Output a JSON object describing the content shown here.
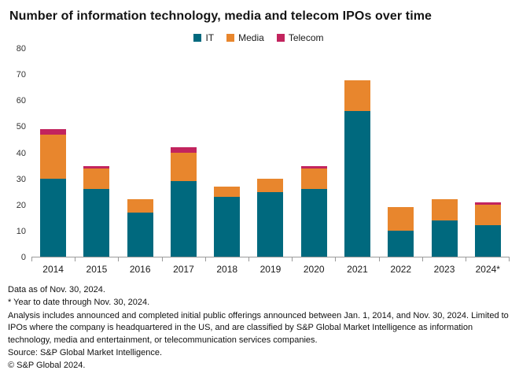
{
  "title": "Number of information technology, media and telecom IPOs over time",
  "chart_data": {
    "type": "bar",
    "stacked": true,
    "title": "Number of information technology, media and telecom IPOs over time",
    "categories": [
      "2014",
      "2015",
      "2016",
      "2017",
      "2018",
      "2019",
      "2020",
      "2021",
      "2022",
      "2023",
      "2024*"
    ],
    "series": [
      {
        "name": "IT",
        "color": "#00697e",
        "values": [
          30,
          26,
          17,
          29,
          23,
          25,
          26,
          56,
          10,
          14,
          12
        ]
      },
      {
        "name": "Media",
        "color": "#e8862d",
        "values": [
          17,
          8,
          5,
          11,
          4,
          5,
          8,
          12,
          9,
          8,
          8
        ]
      },
      {
        "name": "Telecom",
        "color": "#c2245e",
        "values": [
          2,
          1,
          0,
          2,
          0,
          0,
          1,
          0,
          0,
          0,
          1
        ]
      }
    ],
    "totals": [
      49,
      35,
      22,
      42,
      27,
      30,
      35,
      68,
      19,
      22,
      21
    ],
    "xlabel": "",
    "ylabel": "",
    "ylim": [
      0,
      80
    ],
    "y_ticks": [
      0,
      10,
      20,
      30,
      40,
      50,
      60,
      70,
      80
    ],
    "grid": false,
    "legend_position": "top-center"
  },
  "footer": {
    "line1": "Data as of Nov. 30, 2024.",
    "line2": "* Year to date through Nov. 30, 2024.",
    "line3": "Analysis includes announced and completed initial public offerings announced between Jan. 1, 2014, and Nov. 30, 2024. Limited to IPOs where the company is headquartered in the US, and are classified by S&P Global Market Intelligence as information technology, media and entertainment, or telecommunication services companies.",
    "line4": "Source: S&P Global Market Intelligence.",
    "line5": "© S&P Global 2024."
  }
}
